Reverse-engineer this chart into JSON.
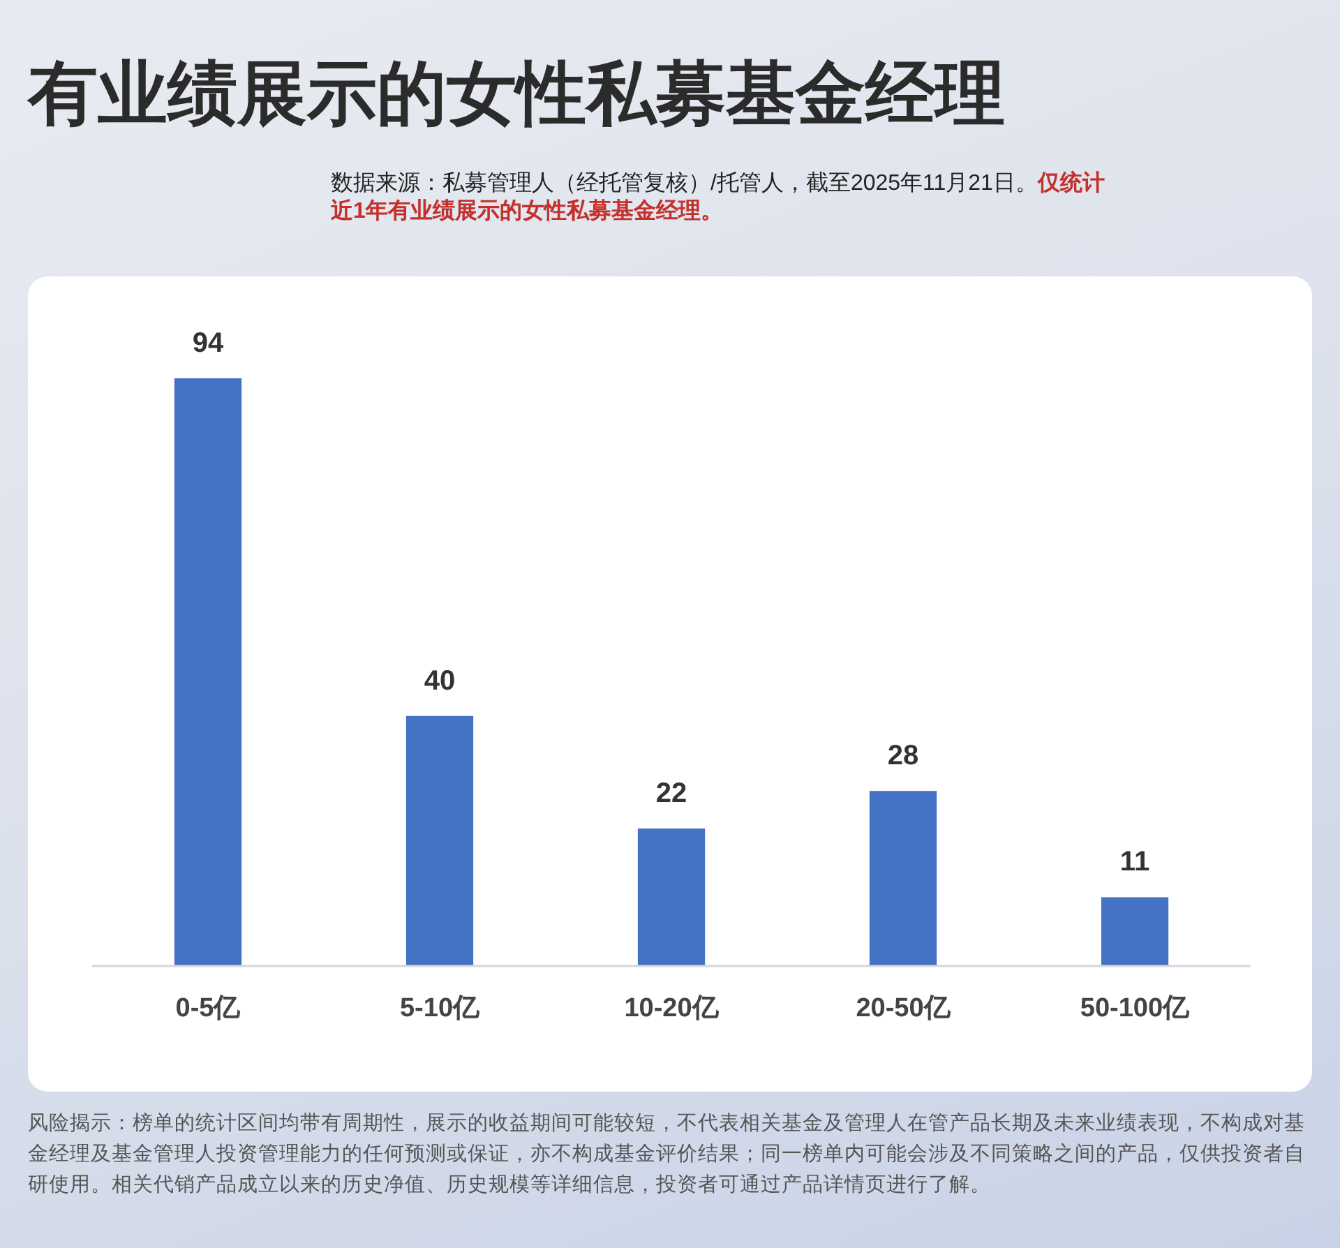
{
  "chart_data": {
    "type": "bar",
    "title": "有业绩展示的女性私募基金经理",
    "annotations": [
      "数据来源：私募管理人（经托管复核）/托管人，截至2025年11月21日。",
      "仅统计近1年有业绩展示的女性私募基金经理。",
      "风险揭示：榜单的统计区间均带有周期性，展示的收益期间可能较短，不代表相关基金及管理人在管产品长期及未来业绩表现，不构成对基金经理及基金管理人投资管理能力的任何预测或保证，亦不构成基金评价结果；同一榜单内可能会涉及不同策略之间的产品，仅供投资者自研使用。相关代销产品成立以来的历史净值、历史规模等详细信息，投资者可通过产品详情页进行了解。"
    ],
    "categories": [
      "0-5亿",
      "5-10亿",
      "10-20亿",
      "20-50亿",
      "50-100亿"
    ],
    "values": [
      94,
      40,
      22,
      28,
      11
    ],
    "color": "#4472c4",
    "data_labels": true
  }
}
